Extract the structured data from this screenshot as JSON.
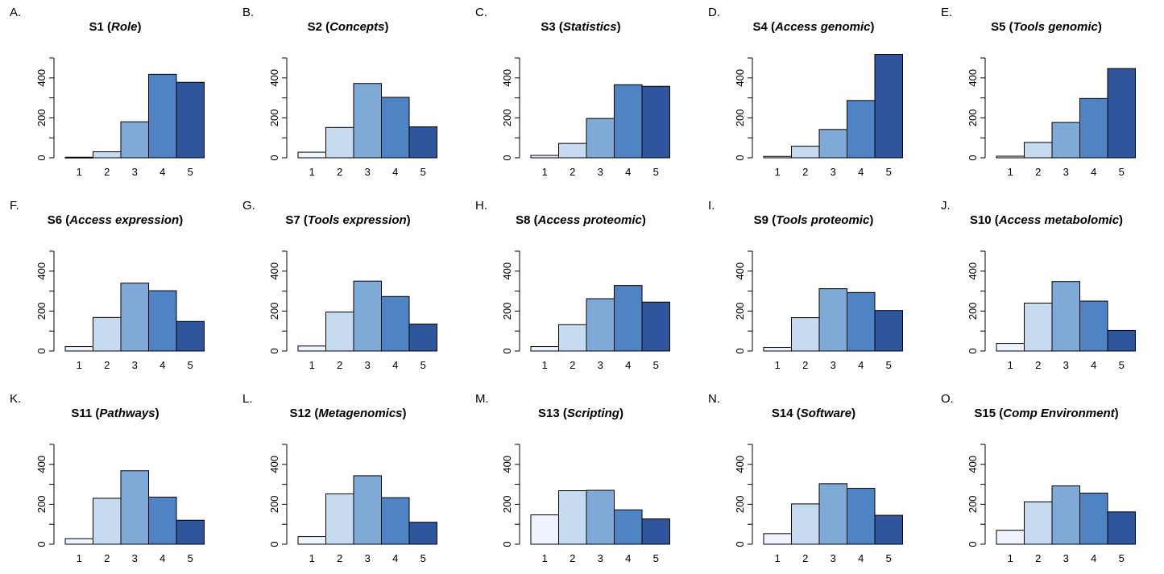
{
  "colors": {
    "bar_fills": [
      "#eff3ff",
      "#c6dbef",
      "#7fa9d6",
      "#4f84c4",
      "#2f559c"
    ],
    "bar_stroke": "#000000"
  },
  "chart_data": [
    {
      "panel": "A.",
      "type": "bar",
      "title_main": "S1",
      "title_italic": "Role",
      "categories": [
        "1",
        "2",
        "3",
        "4",
        "5"
      ],
      "values": [
        3,
        30,
        180,
        418,
        378
      ],
      "ylim": [
        0,
        500
      ],
      "yticks": [
        0,
        200,
        400
      ],
      "grid": false
    },
    {
      "panel": "B.",
      "type": "bar",
      "title_main": "S2",
      "title_italic": "Concepts",
      "categories": [
        "1",
        "2",
        "3",
        "4",
        "5"
      ],
      "values": [
        28,
        152,
        372,
        303,
        155
      ],
      "ylim": [
        0,
        500
      ],
      "yticks": [
        0,
        200,
        400
      ],
      "grid": false
    },
    {
      "panel": "C.",
      "type": "bar",
      "title_main": "S3",
      "title_italic": "Statistics",
      "categories": [
        "1",
        "2",
        "3",
        "4",
        "5"
      ],
      "values": [
        12,
        72,
        197,
        366,
        358
      ],
      "ylim": [
        0,
        500
      ],
      "yticks": [
        0,
        200,
        400
      ],
      "grid": false
    },
    {
      "panel": "D.",
      "type": "bar",
      "title_main": "S4",
      "title_italic": "Access genomic",
      "categories": [
        "1",
        "2",
        "3",
        "4",
        "5"
      ],
      "values": [
        7,
        58,
        142,
        287,
        518
      ],
      "ylim": [
        0,
        500
      ],
      "yticks": [
        0,
        200,
        400
      ],
      "grid": false
    },
    {
      "panel": "E.",
      "type": "bar",
      "title_main": "S5",
      "title_italic": "Tools genomic",
      "categories": [
        "1",
        "2",
        "3",
        "4",
        "5"
      ],
      "values": [
        8,
        77,
        177,
        297,
        447
      ],
      "ylim": [
        0,
        500
      ],
      "yticks": [
        0,
        200,
        400
      ],
      "grid": false
    },
    {
      "panel": "F.",
      "type": "bar",
      "title_main": "S6",
      "title_italic": "Access expression",
      "categories": [
        "1",
        "2",
        "3",
        "4",
        "5"
      ],
      "values": [
        22,
        168,
        340,
        302,
        148
      ],
      "ylim": [
        0,
        500
      ],
      "yticks": [
        0,
        200,
        400
      ],
      "grid": false
    },
    {
      "panel": "G.",
      "type": "bar",
      "title_main": "S7",
      "title_italic": "Tools expression",
      "categories": [
        "1",
        "2",
        "3",
        "4",
        "5"
      ],
      "values": [
        25,
        195,
        350,
        273,
        135
      ],
      "ylim": [
        0,
        500
      ],
      "yticks": [
        0,
        200,
        400
      ],
      "grid": false
    },
    {
      "panel": "H.",
      "type": "bar",
      "title_main": "S8",
      "title_italic": "Access proteomic",
      "categories": [
        "1",
        "2",
        "3",
        "4",
        "5"
      ],
      "values": [
        22,
        132,
        262,
        328,
        245
      ],
      "ylim": [
        0,
        500
      ],
      "yticks": [
        0,
        200,
        400
      ],
      "grid": false
    },
    {
      "panel": "I.",
      "type": "bar",
      "title_main": "S9",
      "title_italic": "Tools proteomic",
      "categories": [
        "1",
        "2",
        "3",
        "4",
        "5"
      ],
      "values": [
        18,
        167,
        312,
        293,
        203
      ],
      "ylim": [
        0,
        500
      ],
      "yticks": [
        0,
        200,
        400
      ],
      "grid": false
    },
    {
      "panel": "J.",
      "type": "bar",
      "title_main": "S10",
      "title_italic": "Access metabolomic",
      "categories": [
        "1",
        "2",
        "3",
        "4",
        "5"
      ],
      "values": [
        38,
        240,
        348,
        250,
        103
      ],
      "ylim": [
        0,
        500
      ],
      "yticks": [
        0,
        200,
        400
      ],
      "grid": false
    },
    {
      "panel": "K.",
      "type": "bar",
      "title_main": "S11",
      "title_italic": "Pathways",
      "categories": [
        "1",
        "2",
        "3",
        "4",
        "5"
      ],
      "values": [
        28,
        230,
        368,
        236,
        120
      ],
      "ylim": [
        0,
        500
      ],
      "yticks": [
        0,
        200,
        400
      ],
      "grid": false
    },
    {
      "panel": "L.",
      "type": "bar",
      "title_main": "S12",
      "title_italic": "Metagenomics",
      "categories": [
        "1",
        "2",
        "3",
        "4",
        "5"
      ],
      "values": [
        38,
        252,
        343,
        233,
        110
      ],
      "ylim": [
        0,
        500
      ],
      "yticks": [
        0,
        200,
        400
      ],
      "grid": false
    },
    {
      "panel": "M.",
      "type": "bar",
      "title_main": "S13",
      "title_italic": "Scripting",
      "categories": [
        "1",
        "2",
        "3",
        "4",
        "5"
      ],
      "values": [
        147,
        268,
        270,
        172,
        127
      ],
      "ylim": [
        0,
        500
      ],
      "yticks": [
        0,
        200,
        400
      ],
      "grid": false
    },
    {
      "panel": "N.",
      "type": "bar",
      "title_main": "S14",
      "title_italic": "Software",
      "categories": [
        "1",
        "2",
        "3",
        "4",
        "5"
      ],
      "values": [
        53,
        202,
        303,
        280,
        145
      ],
      "ylim": [
        0,
        500
      ],
      "yticks": [
        0,
        200,
        400
      ],
      "grid": false
    },
    {
      "panel": "O.",
      "type": "bar",
      "title_main": "S15",
      "title_italic": "Comp Environment",
      "categories": [
        "1",
        "2",
        "3",
        "4",
        "5"
      ],
      "values": [
        70,
        212,
        292,
        256,
        162
      ],
      "ylim": [
        0,
        500
      ],
      "yticks": [
        0,
        200,
        400
      ],
      "grid": false
    }
  ]
}
